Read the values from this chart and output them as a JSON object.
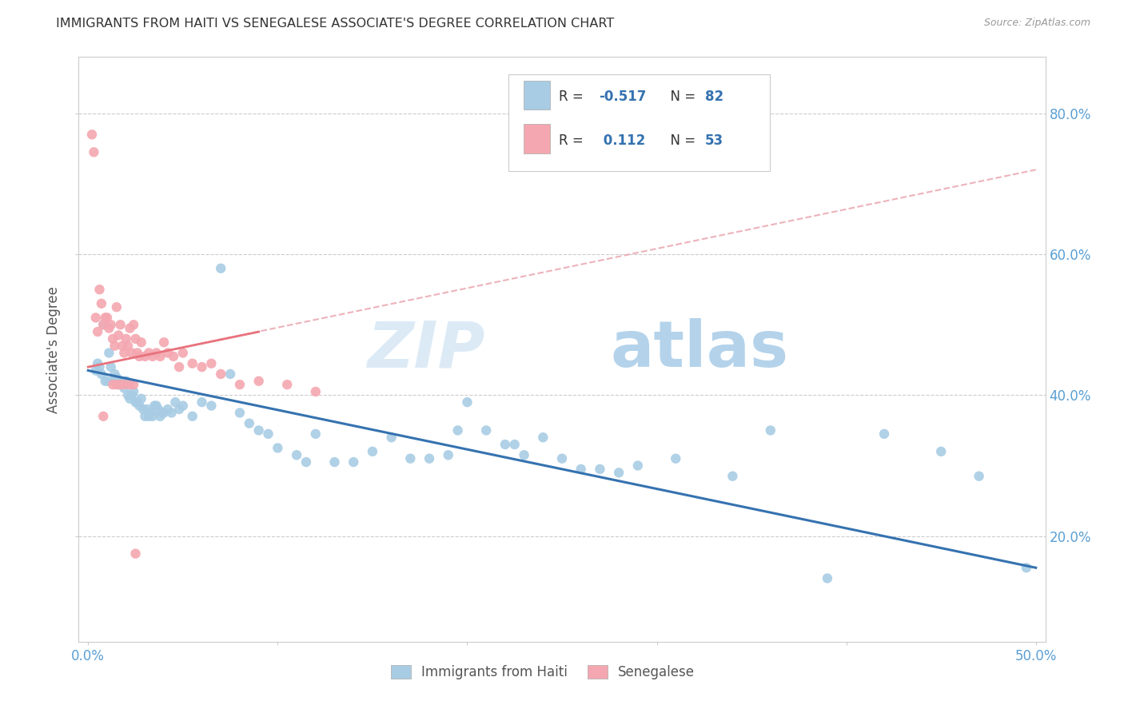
{
  "title": "IMMIGRANTS FROM HAITI VS SENEGALESE ASSOCIATE'S DEGREE CORRELATION CHART",
  "source": "Source: ZipAtlas.com",
  "ylabel": "Associate's Degree",
  "xlim": [
    -0.005,
    0.505
  ],
  "ylim": [
    0.05,
    0.88
  ],
  "xtick_positions": [
    0.0,
    0.1,
    0.2,
    0.3,
    0.4,
    0.5
  ],
  "ytick_positions": [
    0.2,
    0.4,
    0.6,
    0.8
  ],
  "xticklabels_show": [
    "0.0%",
    "",
    "",
    "",
    "",
    "50.0%"
  ],
  "yticklabels_right": [
    "20.0%",
    "40.0%",
    "60.0%",
    "80.0%"
  ],
  "haiti_color": "#a8cce4",
  "senegal_color": "#f4a7b0",
  "haiti_line_color": "#3572b0",
  "senegal_line_color": "#e8737d",
  "senegal_dash_color": "#e8a0a8",
  "watermark_zip": "ZIP",
  "watermark_atlas": "atlas",
  "legend_haiti_r": "-0.517",
  "legend_haiti_n": "82",
  "legend_senegal_r": "0.112",
  "legend_senegal_n": "53",
  "haiti_scatter_x": [
    0.004,
    0.005,
    0.006,
    0.007,
    0.008,
    0.009,
    0.01,
    0.011,
    0.012,
    0.013,
    0.014,
    0.015,
    0.016,
    0.017,
    0.018,
    0.019,
    0.02,
    0.021,
    0.022,
    0.023,
    0.024,
    0.025,
    0.026,
    0.027,
    0.028,
    0.029,
    0.03,
    0.031,
    0.032,
    0.033,
    0.034,
    0.035,
    0.036,
    0.037,
    0.038,
    0.039,
    0.04,
    0.042,
    0.044,
    0.046,
    0.048,
    0.05,
    0.055,
    0.06,
    0.065,
    0.07,
    0.075,
    0.08,
    0.085,
    0.09,
    0.095,
    0.1,
    0.11,
    0.115,
    0.12,
    0.13,
    0.14,
    0.15,
    0.16,
    0.17,
    0.18,
    0.19,
    0.195,
    0.2,
    0.21,
    0.22,
    0.225,
    0.23,
    0.24,
    0.25,
    0.26,
    0.27,
    0.28,
    0.29,
    0.31,
    0.34,
    0.36,
    0.39,
    0.42,
    0.45,
    0.47,
    0.495
  ],
  "haiti_scatter_y": [
    0.435,
    0.445,
    0.44,
    0.43,
    0.5,
    0.42,
    0.42,
    0.46,
    0.44,
    0.42,
    0.43,
    0.425,
    0.415,
    0.42,
    0.415,
    0.41,
    0.42,
    0.4,
    0.395,
    0.4,
    0.405,
    0.39,
    0.39,
    0.385,
    0.395,
    0.38,
    0.37,
    0.38,
    0.37,
    0.375,
    0.37,
    0.385,
    0.385,
    0.38,
    0.37,
    0.375,
    0.375,
    0.38,
    0.375,
    0.39,
    0.38,
    0.385,
    0.37,
    0.39,
    0.385,
    0.58,
    0.43,
    0.375,
    0.36,
    0.35,
    0.345,
    0.325,
    0.315,
    0.305,
    0.345,
    0.305,
    0.305,
    0.32,
    0.34,
    0.31,
    0.31,
    0.315,
    0.35,
    0.39,
    0.35,
    0.33,
    0.33,
    0.315,
    0.34,
    0.31,
    0.295,
    0.295,
    0.29,
    0.3,
    0.31,
    0.285,
    0.35,
    0.14,
    0.345,
    0.32,
    0.285,
    0.155
  ],
  "senegal_scatter_x": [
    0.002,
    0.003,
    0.004,
    0.005,
    0.006,
    0.007,
    0.008,
    0.009,
    0.01,
    0.011,
    0.012,
    0.013,
    0.014,
    0.015,
    0.016,
    0.017,
    0.018,
    0.019,
    0.02,
    0.021,
    0.022,
    0.023,
    0.024,
    0.025,
    0.026,
    0.027,
    0.028,
    0.03,
    0.032,
    0.034,
    0.036,
    0.038,
    0.04,
    0.042,
    0.045,
    0.048,
    0.05,
    0.055,
    0.06,
    0.065,
    0.07,
    0.08,
    0.09,
    0.105,
    0.12,
    0.013,
    0.015,
    0.017,
    0.019,
    0.022,
    0.024,
    0.008,
    0.025
  ],
  "senegal_scatter_y": [
    0.77,
    0.745,
    0.51,
    0.49,
    0.55,
    0.53,
    0.5,
    0.51,
    0.51,
    0.495,
    0.5,
    0.48,
    0.47,
    0.525,
    0.485,
    0.5,
    0.47,
    0.46,
    0.48,
    0.47,
    0.495,
    0.46,
    0.5,
    0.48,
    0.46,
    0.455,
    0.475,
    0.455,
    0.46,
    0.455,
    0.46,
    0.455,
    0.475,
    0.46,
    0.455,
    0.44,
    0.46,
    0.445,
    0.44,
    0.445,
    0.43,
    0.415,
    0.42,
    0.415,
    0.405,
    0.415,
    0.415,
    0.415,
    0.415,
    0.415,
    0.415,
    0.37,
    0.175
  ],
  "haiti_trendline_x": [
    0.0,
    0.5
  ],
  "haiti_trendline_y": [
    0.435,
    0.155
  ],
  "senegal_trendline_x": [
    0.0,
    0.5
  ],
  "senegal_trendline_y": [
    0.44,
    0.72
  ]
}
